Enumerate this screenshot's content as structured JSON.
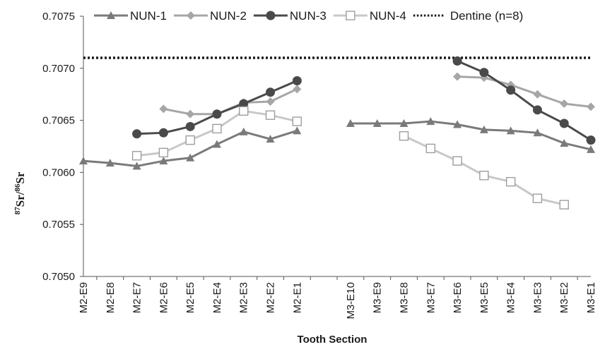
{
  "chart_data": {
    "type": "line",
    "xlabel": "Tooth Section",
    "ylabel_mass_a": "87",
    "ylabel_elem": "Sr",
    "ylabel_slash": "/",
    "ylabel_mass_b": "86",
    "ylim": [
      0.705,
      0.7075
    ],
    "y_ticks": [
      "0.7050",
      "0.7055",
      "0.7060",
      "0.7065",
      "0.7070",
      "0.7075"
    ],
    "categories": [
      "M2-E9",
      "M2-E8",
      "M2-E7",
      "M2-E6",
      "M2-E5",
      "M2-E4",
      "M2-E3",
      "M2-E2",
      "M2-E1",
      "",
      "M3-E10",
      "M3-E9",
      "M3-E8",
      "M3-E7",
      "M3-E6",
      "M3-E5",
      "M3-E4",
      "M3-E3",
      "M3-E2",
      "M3-E1"
    ],
    "grid": false,
    "legend_position": "top",
    "series": [
      {
        "name": "NUN-1",
        "color": "#7a7a7a",
        "marker": "triangle",
        "values": [
          0.70611,
          0.70609,
          0.70606,
          0.70611,
          0.70614,
          0.70627,
          0.70639,
          0.70632,
          0.7064,
          null,
          0.70647,
          0.70647,
          0.70647,
          0.70649,
          0.70646,
          0.70641,
          0.7064,
          0.70638,
          0.70628,
          0.70622
        ]
      },
      {
        "name": "NUN-2",
        "color": "#a6a6a6",
        "marker": "diamond",
        "values": [
          null,
          null,
          null,
          0.70661,
          0.70656,
          0.70656,
          0.70667,
          0.70668,
          0.7068,
          null,
          null,
          null,
          null,
          null,
          0.70692,
          0.70691,
          0.70684,
          0.70675,
          0.70666,
          0.70663
        ]
      },
      {
        "name": "NUN-3",
        "color": "#4a4a4a",
        "marker": "circle",
        "values": [
          null,
          null,
          0.70637,
          0.70638,
          0.70644,
          0.70656,
          0.70666,
          0.70677,
          0.70688,
          null,
          null,
          null,
          null,
          null,
          0.70707,
          0.70696,
          0.70679,
          0.7066,
          0.70647,
          0.70631
        ]
      },
      {
        "name": "NUN-4",
        "color": "#c8c8c8",
        "marker": "square",
        "values": [
          null,
          null,
          0.70616,
          0.70619,
          0.70631,
          0.70642,
          0.70659,
          0.70655,
          0.70649,
          null,
          null,
          null,
          0.70635,
          0.70623,
          0.70611,
          0.70597,
          0.70591,
          0.70575,
          0.70569,
          null
        ]
      }
    ],
    "reference_line": {
      "name": "Dentine (n=8)",
      "value": 0.7071,
      "style": "dotted",
      "color": "#1a1a1a"
    }
  }
}
